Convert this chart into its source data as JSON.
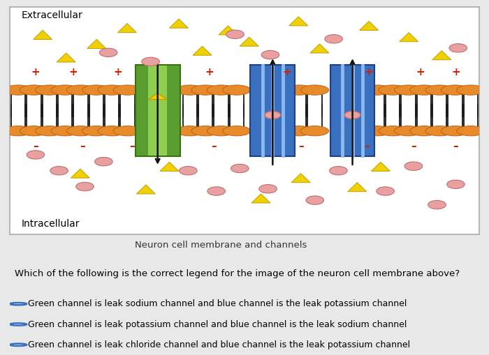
{
  "bg_color": "#e8e8e8",
  "diagram_bg": "#ffffff",
  "title": "Neuron cell membrane and channels",
  "question": "Which of the following is the correct legend for the image of the neuron cell membrane above?",
  "options": [
    "Green channel is leak sodium channel and blue channel is the leak potassium channel",
    "Green channel is leak potassium channel and blue channel is the leak sodium channel",
    "Green channel is leak chloride channel and blue channel is the leak potassium channel"
  ],
  "phospholipid_color": "#E8892A",
  "tail_color": "#1a1a1a",
  "green_channel_outer": "#5a9e2f",
  "green_channel_inner": "#8fce50",
  "blue_channel_outer": "#3a70c0",
  "blue_channel_inner": "#5a9ee0",
  "plus_color": "#cc2200",
  "minus_color": "#cc2200",
  "triangle_color": "#f0d000",
  "triangle_outline": "#c0a000",
  "circle_color": "#e8a0a0",
  "circle_outline": "#c07070",
  "arrow_color": "#111111",
  "radio_color": "#3a70c0"
}
